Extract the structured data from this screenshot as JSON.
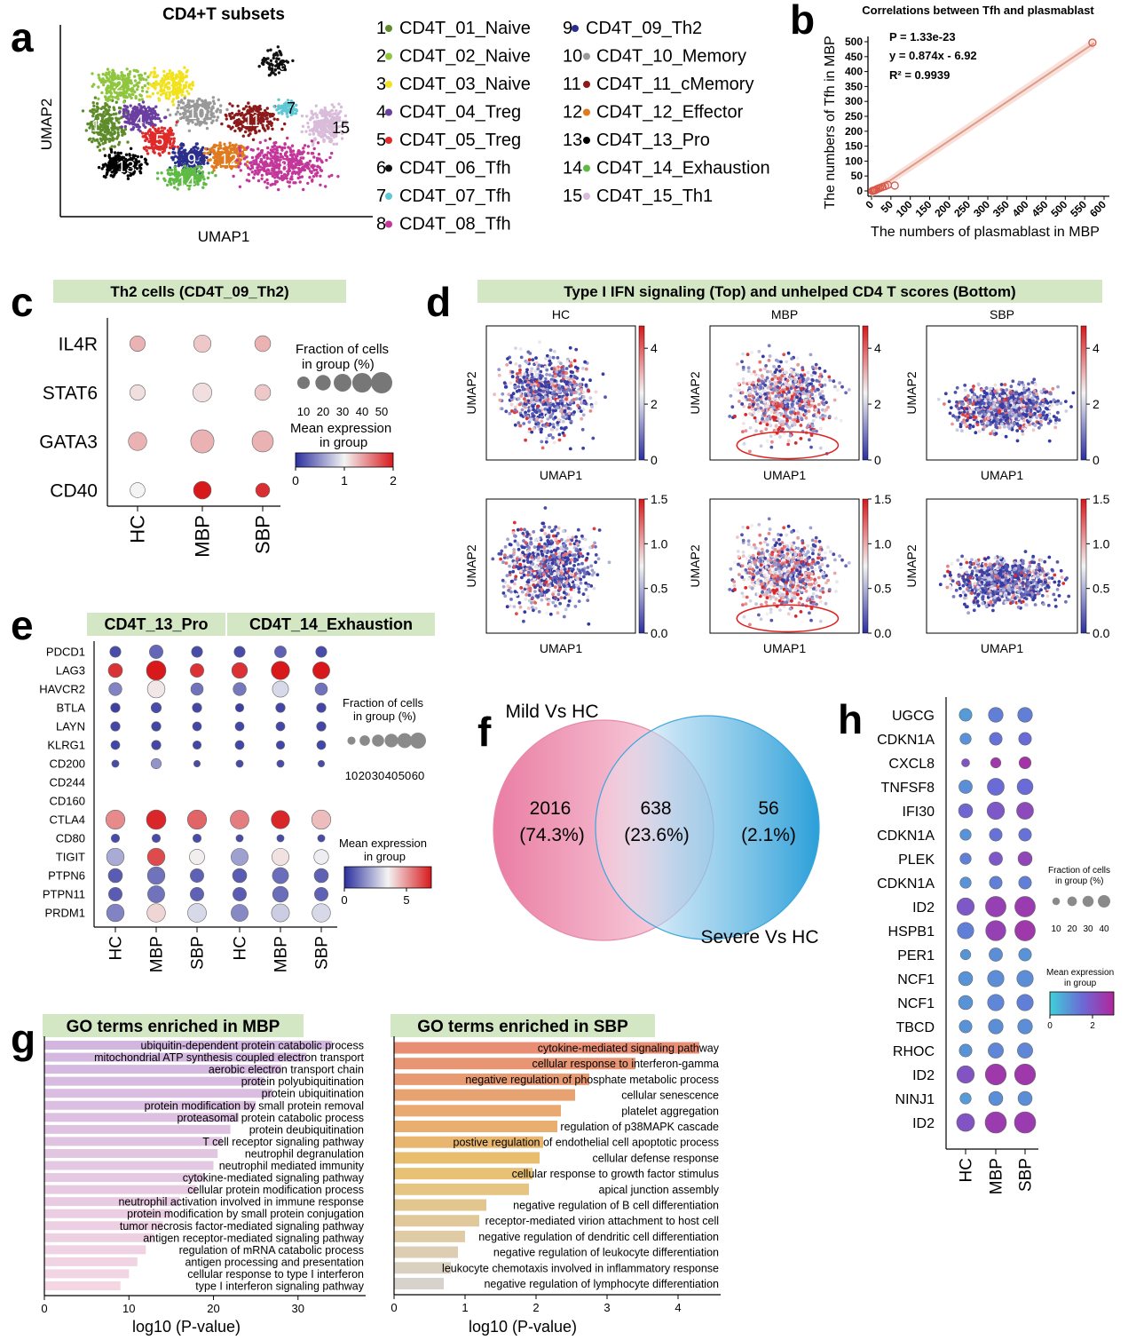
{
  "panel_labels": [
    "a",
    "b",
    "c",
    "d",
    "e",
    "f",
    "g",
    "h"
  ],
  "panel_a": {
    "title": "CD4+T subsets",
    "xlabel": "UMAP1",
    "ylabel": "UMAP2",
    "clusters": [
      {
        "id": "1",
        "name": "CD4T_01_Naive",
        "color": "#5e8c2b"
      },
      {
        "id": "2",
        "name": "CD4T_02_Naive",
        "color": "#8fc63f"
      },
      {
        "id": "3",
        "name": "CD4T_03_Naive",
        "color": "#f2e21e"
      },
      {
        "id": "4",
        "name": "CD4T_04_Treg",
        "color": "#6b3fa0"
      },
      {
        "id": "5",
        "name": "CD4T_05_Treg",
        "color": "#e02b2b"
      },
      {
        "id": "6",
        "name": "CD4T_06_Tfh",
        "color": "#111111"
      },
      {
        "id": "7",
        "name": "CD4T_07_Tfh",
        "color": "#5fc8d6"
      },
      {
        "id": "8",
        "name": "CD4T_08_Tfh",
        "color": "#c3379a"
      },
      {
        "id": "9",
        "name": "CD4T_09_Th2",
        "color": "#2b2f8c"
      },
      {
        "id": "10",
        "name": "CD4T_10_Memory",
        "color": "#999999"
      },
      {
        "id": "11",
        "name": "CD4T_11_cMemory",
        "color": "#8b1a1a"
      },
      {
        "id": "12",
        "name": "CD4T_12_Effector",
        "color": "#e07a1f"
      },
      {
        "id": "13",
        "name": "CD4T_13_Pro",
        "color": "#000000"
      },
      {
        "id": "14",
        "name": "CD4T_14_Exhaustion",
        "color": "#5fba46"
      },
      {
        "id": "15",
        "name": "CD4T_15_Th1",
        "color": "#d9bcd9"
      }
    ]
  },
  "chart_data": [
    {
      "panel": "b",
      "type": "scatter",
      "title": "Correlations between Tfh and plasmablast",
      "xlabel": "The numbers of plasmablast in MBP",
      "ylabel": "The numbers of Tfh in MBP",
      "xlim": [
        0,
        600
      ],
      "ylim": [
        0,
        500
      ],
      "xticks": [
        0,
        50,
        100,
        150,
        200,
        250,
        300,
        350,
        400,
        450,
        500,
        550,
        600
      ],
      "yticks": [
        0,
        50,
        100,
        150,
        200,
        250,
        300,
        350,
        400,
        450,
        500
      ],
      "annotations": [
        "P = 1.33e-23",
        "y = 0.874x - 6.92",
        "R² = 0.9939"
      ],
      "points": [
        [
          2,
          0
        ],
        [
          5,
          1
        ],
        [
          8,
          2
        ],
        [
          10,
          3
        ],
        [
          14,
          6
        ],
        [
          18,
          8
        ],
        [
          22,
          10
        ],
        [
          28,
          13
        ],
        [
          35,
          16
        ],
        [
          42,
          20
        ],
        [
          60,
          18
        ],
        [
          570,
          497
        ]
      ],
      "fit": {
        "slope": 0.874,
        "intercept": -6.92
      }
    },
    {
      "panel": "c",
      "type": "dotplot",
      "title": "Th2 cells (CD4T_09_Th2)",
      "genes": [
        "IL4R",
        "STAT6",
        "GATA3",
        "CD40"
      ],
      "groups": [
        "HC",
        "MBP",
        "SBP"
      ],
      "fraction": [
        [
          12,
          17,
          13
        ],
        [
          12,
          22,
          13
        ],
        [
          20,
          38,
          30
        ],
        [
          11,
          18,
          9
        ]
      ],
      "expression": [
        [
          1.3,
          1.2,
          1.3
        ],
        [
          1.1,
          1.1,
          1.2
        ],
        [
          1.3,
          1.3,
          1.3
        ],
        [
          1.0,
          2.0,
          1.9
        ]
      ],
      "legend_size_title": "Fraction of cells in group (%)",
      "size_ticks": [
        "10",
        "20",
        "30",
        "40",
        "50"
      ],
      "legend_color_title": "Mean expression in group",
      "color_ticks": [
        "0",
        "1",
        "2"
      ],
      "color_range": [
        0,
        2
      ]
    },
    {
      "panel": "d",
      "type": "scatter",
      "title": "Type I IFN signaling (Top) and unhelped CD4 T scores (Bottom)",
      "subplot_titles": [
        "HC",
        "MBP",
        "SBP"
      ],
      "xlabel": "UMAP1",
      "ylabel": "UMAP2",
      "top_colorbar": {
        "range": [
          0,
          4.8
        ],
        "ticks": [
          "0",
          "2",
          "4"
        ]
      },
      "bottom_colorbar": {
        "range": [
          0,
          1.5
        ],
        "ticks": [
          "0.0",
          "0.5",
          "1.0",
          "1.5"
        ]
      }
    },
    {
      "panel": "e",
      "type": "dotplot",
      "group_titles": [
        "CD4T_13_Pro",
        "CD4T_14_Exhaustion"
      ],
      "genes": [
        "PDCD1",
        "LAG3",
        "HAVCR2",
        "BTLA",
        "LAYN",
        "KLRG1",
        "CD200",
        "CD244",
        "CD160",
        "CTLA4",
        "CD80",
        "TIGIT",
        "PTPN6",
        "PTPN11",
        "PRDM1"
      ],
      "groups": [
        "HC",
        "MBP",
        "SBP",
        "HC",
        "MBP",
        "SBP"
      ],
      "fraction": [
        [
          12,
          20,
          12,
          12,
          14,
          12
        ],
        [
          22,
          46,
          20,
          28,
          40,
          34
        ],
        [
          18,
          36,
          16,
          18,
          30,
          16
        ],
        [
          8,
          10,
          8,
          6,
          8,
          8
        ],
        [
          8,
          8,
          7,
          7,
          7,
          8
        ],
        [
          7,
          8,
          6,
          7,
          6,
          7
        ],
        [
          4,
          10,
          3,
          4,
          4,
          3
        ],
        [
          0,
          0,
          0,
          0,
          0,
          0
        ],
        [
          0,
          0,
          0,
          0,
          0,
          0
        ],
        [
          44,
          46,
          44,
          42,
          40,
          44
        ],
        [
          6,
          6,
          6,
          4,
          4,
          4
        ],
        [
          36,
          36,
          26,
          34,
          34,
          24
        ],
        [
          22,
          36,
          20,
          22,
          30,
          22
        ],
        [
          20,
          34,
          20,
          20,
          28,
          20
        ],
        [
          36,
          40,
          42,
          34,
          38,
          40
        ]
      ],
      "expression": [
        [
          0.5,
          1.0,
          0.5,
          0.5,
          0.9,
          0.5
        ],
        [
          6.6,
          7.0,
          6.6,
          6.6,
          7.0,
          7.0
        ],
        [
          1.5,
          3.7,
          1.2,
          1.3,
          3.0,
          1.2
        ],
        [
          0.3,
          0.5,
          0.4,
          0.3,
          0.4,
          0.4
        ],
        [
          0.4,
          0.4,
          0.4,
          0.4,
          0.4,
          0.4
        ],
        [
          0.4,
          0.4,
          0.4,
          0.4,
          0.4,
          0.4
        ],
        [
          0.5,
          1.8,
          0.5,
          0.5,
          0.5,
          0.5
        ],
        [
          0,
          0,
          0,
          0,
          0,
          0
        ],
        [
          0,
          0,
          0,
          0,
          0,
          0
        ],
        [
          5.2,
          6.8,
          5.8,
          5.4,
          6.8,
          4.4
        ],
        [
          0.5,
          0.5,
          0.5,
          0.5,
          0.5,
          0.5
        ],
        [
          2.2,
          6.2,
          3.6,
          2.0,
          3.8,
          3.4
        ],
        [
          0.8,
          1.2,
          0.9,
          0.8,
          1.1,
          0.9
        ],
        [
          0.8,
          1.2,
          0.9,
          0.8,
          1.1,
          0.9
        ],
        [
          1.5,
          4.0,
          3.0,
          1.6,
          2.8,
          3.0
        ]
      ],
      "legend_size_title": "Fraction of cells in group (%)",
      "size_ticks": [
        "10",
        "20",
        "30",
        "40",
        "50",
        "60"
      ],
      "legend_color_title": "Mean expression in group",
      "color_ticks": [
        "0",
        "5"
      ],
      "color_range": [
        0,
        7
      ]
    },
    {
      "panel": "f",
      "type": "venn",
      "set_labels": [
        "Mild Vs HC",
        "Severe Vs HC"
      ],
      "regions": [
        {
          "count": "2016",
          "percent": "(74.3%)"
        },
        {
          "count": "638",
          "percent": "(23.6%)"
        },
        {
          "count": "56",
          "percent": "(2.1%)"
        }
      ]
    },
    {
      "panel": "g-left",
      "type": "bar",
      "orientation": "horizontal",
      "title": "GO terms enriched in MBP",
      "xlabel": "log10 (P-value)",
      "xlim": [
        0,
        38
      ],
      "xticks": [
        0,
        10,
        20,
        30
      ],
      "categories": [
        "ubiquitin-dependent protein catabolic process",
        "mitochondrial ATP synthesis coupled electron transport",
        "aerobic electron transport chain",
        "protein polyubiquitination",
        "protein ubiquitination",
        "protein modification by small protein removal",
        "proteasomal protein catabolic process",
        "protein deubiquitination",
        "T cell receptor signaling pathway",
        "neutrophil degranulation",
        "neutrophil mediated immunity",
        "cytokine-mediated signaling pathway",
        "cellular protein modification process",
        "neutrophil activation involved in immune response",
        "protein modification by small protein conjugation",
        "tumor necrosis factor-mediated signaling pathway",
        "antigen receptor-mediated signaling pathway",
        "regulation of mRNA catabolic process",
        "antigen processing and presentation",
        "cellular response to type I interferon",
        "type I interferon signaling pathway"
      ],
      "values": [
        34,
        31,
        28,
        26,
        27,
        25,
        23,
        22,
        21,
        20.5,
        20,
        19,
        18,
        16,
        15,
        14,
        13,
        12,
        11,
        10,
        9
      ]
    },
    {
      "panel": "g-right",
      "type": "bar",
      "orientation": "horizontal",
      "title": "GO terms enriched in SBP",
      "xlabel": "log10 (P-value)",
      "xlim": [
        0,
        4.6
      ],
      "xticks": [
        0,
        1,
        2,
        3,
        4
      ],
      "categories": [
        "cytokine-mediated signaling pathway",
        "cellular response to interferon-gamma",
        "negative regulation of phosphate metabolic process",
        "cellular senescence",
        "platelet aggregation",
        "regulation of p38MAPK cascade",
        "postive regulation of endothelial cell apoptotic process",
        "cellular defense response",
        "cellular response to growth factor stimulus",
        "apical junction assembly",
        "negative regulation of B cell differentiation",
        "receptor-mediated virion attachment to host cell",
        "negative regulation of dendritic cell differentiation",
        "negative regulation of leukocyte differentiation",
        "leukocyte chemotaxis involved in inflammatory response",
        "negative regulation of lymphocyte differentiation"
      ],
      "values": [
        4.3,
        3.4,
        2.75,
        2.55,
        2.35,
        2.3,
        2.1,
        2.05,
        1.95,
        1.9,
        1.3,
        1.2,
        1.0,
        0.9,
        0.8,
        0.7
      ]
    },
    {
      "panel": "h",
      "type": "dotplot",
      "genes": [
        "UGCG",
        "CDKN1A",
        "CXCL8",
        "TNFSF8",
        "IFI30",
        "CDKN1A",
        "PLEK",
        "CDKN1A",
        "ID2",
        "HSPB1",
        "PER1",
        "NCF1",
        "NCF1",
        "TBCD",
        "RHOC",
        "ID2",
        "NINJ1",
        "ID2"
      ],
      "groups": [
        "HC",
        "MBP",
        "SBP"
      ],
      "fraction": [
        [
          14,
          20,
          20
        ],
        [
          10,
          14,
          14
        ],
        [
          4,
          8,
          12
        ],
        [
          16,
          28,
          24
        ],
        [
          18,
          30,
          28
        ],
        [
          10,
          14,
          14
        ],
        [
          10,
          16,
          18
        ],
        [
          10,
          14,
          14
        ],
        [
          30,
          44,
          44
        ],
        [
          26,
          42,
          44
        ],
        [
          8,
          16,
          14
        ],
        [
          18,
          26,
          26
        ],
        [
          18,
          26,
          26
        ],
        [
          14,
          20,
          20
        ],
        [
          14,
          22,
          22
        ],
        [
          30,
          46,
          46
        ],
        [
          10,
          18,
          18
        ],
        [
          32,
          48,
          48
        ]
      ],
      "expression": [
        [
          0.8,
          1.2,
          1.2
        ],
        [
          0.9,
          1.4,
          1.5
        ],
        [
          2.0,
          2.6,
          2.7
        ],
        [
          1.0,
          1.5,
          1.5
        ],
        [
          1.6,
          1.9,
          2.2
        ],
        [
          0.9,
          1.4,
          1.4
        ],
        [
          1.2,
          1.9,
          2.3
        ],
        [
          0.9,
          1.2,
          1.2
        ],
        [
          1.9,
          2.4,
          2.5
        ],
        [
          1.2,
          2.4,
          2.6
        ],
        [
          0.9,
          1.0,
          0.9
        ],
        [
          0.9,
          1.0,
          1.0
        ],
        [
          0.9,
          1.1,
          1.2
        ],
        [
          0.9,
          1.0,
          1.0
        ],
        [
          0.9,
          1.1,
          1.1
        ],
        [
          2.0,
          2.6,
          2.6
        ],
        [
          0.8,
          1.0,
          1.0
        ],
        [
          2.0,
          2.5,
          2.5
        ]
      ],
      "legend_size_title": "Fraction of cells in group (%)",
      "size_ticks": [
        "10",
        "20",
        "30",
        "40"
      ],
      "legend_color_title": "Mean expression in group",
      "color_ticks": [
        "0",
        "2"
      ],
      "color_range": [
        0,
        3
      ]
    }
  ]
}
